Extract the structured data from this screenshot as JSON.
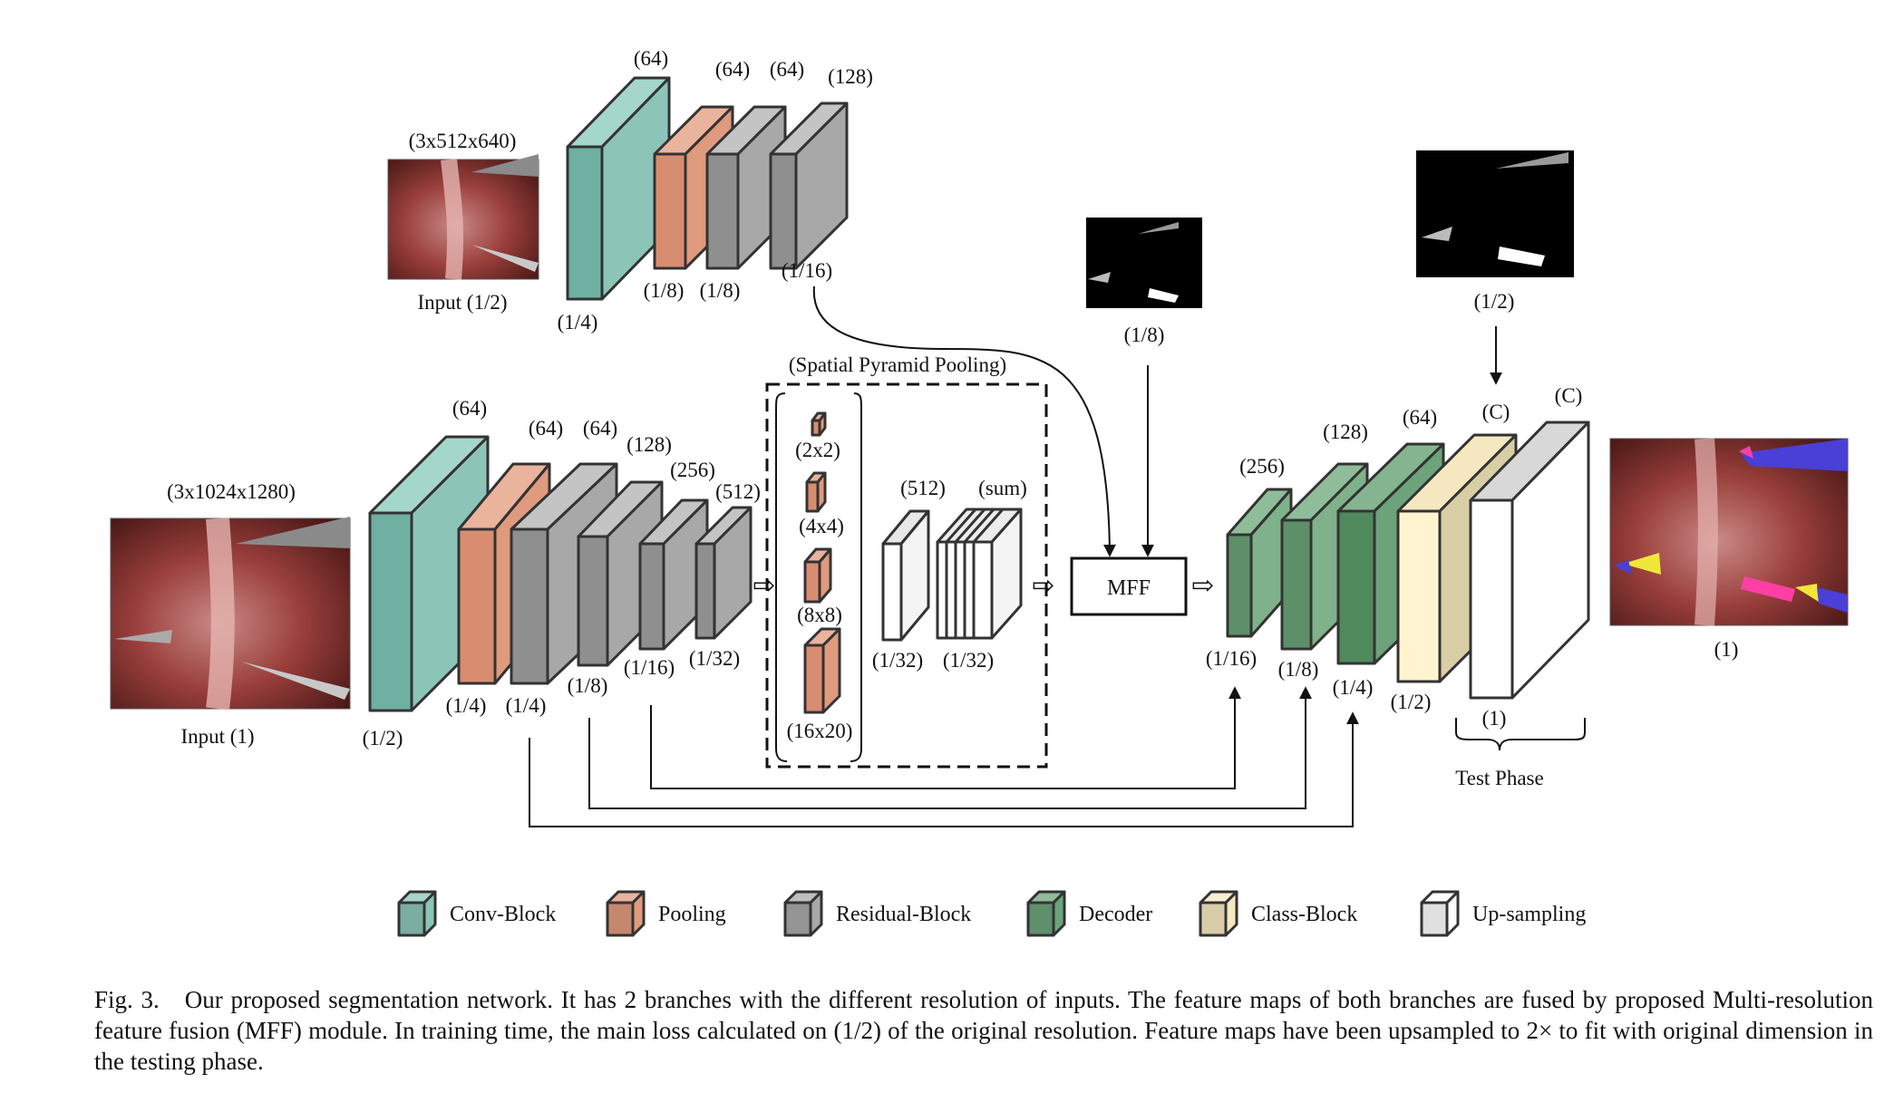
{
  "labels": {
    "top_input_dims": "(3x512x640)",
    "top_input_caption": "Input  (1/2)",
    "top_conv_ch": "(64)",
    "top_conv_scale": "(1/4)",
    "top_pool_ch": "(64)",
    "top_pool_scale": "(1/8)",
    "top_res1_ch": "(64)",
    "top_res1_scale": "(1/8)",
    "top_res2_ch": "(128)",
    "top_res2_scale": "(1/16)",
    "mff_mask_scale": "(1/8)",
    "main_input_dims": "(3x1024x1280)",
    "main_input_caption": "Input  (1)",
    "conv_ch": "(64)",
    "conv_scale": "(1/2)",
    "pool_ch": "(64)",
    "pool_scale": "(1/4)",
    "res1_ch": "(64)",
    "res1_scale": "(1/4)",
    "res2_ch": "(128)",
    "res2_scale": "(1/8)",
    "res3_ch": "(256)",
    "res3_scale": "(1/16)",
    "res4_ch": "(512)",
    "res4_scale": "(1/32)",
    "spp_title": "(Spatial Pyramid Pooling)",
    "spp_2x2": "(2x2)",
    "spp_4x4": "(4x4)",
    "spp_8x8": "(8x8)",
    "spp_16x20": "(16x20)",
    "spp_up_ch": "(512)",
    "spp_up_scale": "(1/32)",
    "spp_sum_ch": "(sum)",
    "spp_sum_scale": "(1/32)",
    "mff": "MFF",
    "dec1_ch": "(256)",
    "dec1_scale": "(1/16)",
    "dec2_ch": "(128)",
    "dec2_scale": "(1/8)",
    "dec3_ch": "(64)",
    "dec3_scale": "(1/4)",
    "class_ch": "(C)",
    "class_scale": "(1/2)",
    "up_ch": "(C)",
    "up_scale": "(1)",
    "loss_mask_scale": "(1/2)",
    "output_scale": "(1)",
    "test_phase": "Test Phase"
  },
  "legend": [
    {
      "label": "Conv-Block",
      "color": "#8cc5b8"
    },
    {
      "label": "Pooling",
      "color": "#e09a7e"
    },
    {
      "label": "Residual-Block",
      "color": "#a8a8a8"
    },
    {
      "label": "Decoder",
      "color": "#6da37a"
    },
    {
      "label": "Class-Block",
      "color": "#f5e8c0"
    },
    {
      "label": "Up-sampling",
      "color": "#ffffff"
    }
  ],
  "caption": {
    "fig_num": "Fig. 3.",
    "text": "Our proposed segmentation network. It has 2 branches with the different resolution of inputs. The feature maps of both branches are fused by proposed Multi-resolution feature fusion (MFF) module. In training time, the main loss calculated on (1/2) of the original resolution. Feature maps have been upsampled to 2× to fit with original dimension in the testing phase."
  }
}
